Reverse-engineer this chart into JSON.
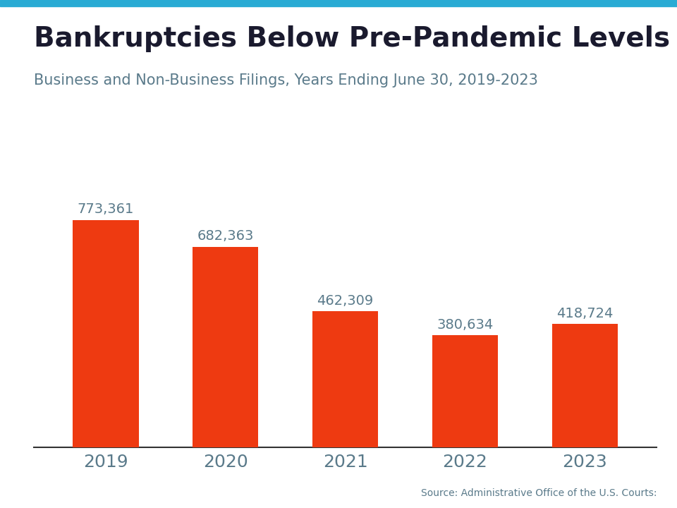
{
  "title": "Bankruptcies Below Pre-Pandemic Levels",
  "subtitle": "Business and Non-Business Filings, Years Ending June 30, 2019-2023",
  "source": "Source: Administrative Office of the U.S. Courts:",
  "categories": [
    "2019",
    "2020",
    "2021",
    "2022",
    "2023"
  ],
  "values": [
    773361,
    682363,
    462309,
    380634,
    418724
  ],
  "labels": [
    "773,361",
    "682,363",
    "462,309",
    "380,634",
    "418,724"
  ],
  "bar_color": "#EE3A11",
  "background_color": "#FFFFFF",
  "title_color": "#1a1a2e",
  "subtitle_color": "#5a7a8a",
  "label_color": "#5a7a8a",
  "tick_color": "#5a7a8a",
  "grid_color": "#d0d0d0",
  "top_stripe_color": "#29ABD4",
  "ylim": [
    0,
    900000
  ],
  "title_fontsize": 28,
  "subtitle_fontsize": 15,
  "label_fontsize": 14,
  "tick_fontsize": 18,
  "source_fontsize": 10
}
